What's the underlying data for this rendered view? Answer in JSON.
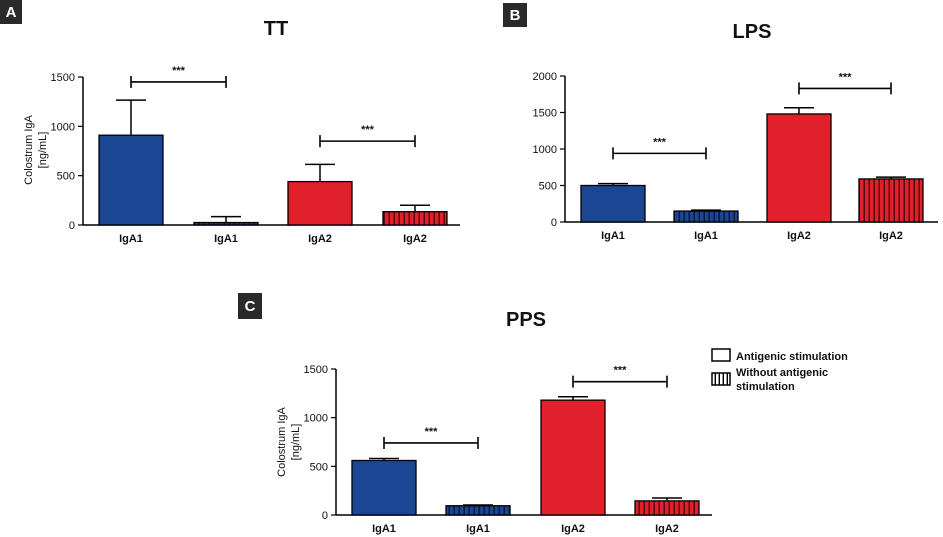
{
  "colors": {
    "iga1": "#1a4694",
    "iga2": "#e0202a",
    "panel_label_bg": "#2a2a2a",
    "axis": "#000000"
  },
  "legend": {
    "items": [
      {
        "label": "Antigenic stimulation",
        "pattern": "solid"
      },
      {
        "label": "Without antigenic stimulation",
        "line1": "Without antigenic",
        "line2": "stimulation",
        "pattern": "striped"
      }
    ]
  },
  "chart_data": [
    {
      "panel": "A",
      "type": "bar",
      "title": "TT",
      "ylabel_line1": "Colostrum IgA",
      "ylabel_line2": "[ng/mL]",
      "ylim": [
        0,
        1500
      ],
      "yticks": [
        0,
        500,
        1000,
        1500
      ],
      "ytick_labels": [
        "0",
        "500",
        "1000",
        "1500"
      ],
      "categories": [
        "IgA1",
        "IgA1",
        "IgA2",
        "IgA2"
      ],
      "values": [
        910,
        25,
        440,
        135
      ],
      "errors": [
        355,
        60,
        175,
        65
      ],
      "fill": [
        "iga1",
        "iga1",
        "iga2",
        "iga2"
      ],
      "pattern": [
        "solid",
        "striped",
        "solid",
        "striped"
      ],
      "significance": [
        {
          "from": 0,
          "to": 1,
          "label": "***",
          "y": 1450
        },
        {
          "from": 2,
          "to": 3,
          "label": "***",
          "y": 850
        }
      ]
    },
    {
      "panel": "B",
      "type": "bar",
      "title": "LPS",
      "ylabel_line1": "",
      "ylabel_line2": "",
      "ylim": [
        0,
        2000
      ],
      "yticks": [
        0,
        500,
        1000,
        1500,
        2000
      ],
      "ytick_labels": [
        "0",
        "500",
        "1000",
        "1500",
        "2000"
      ],
      "categories": [
        "IgA1",
        "IgA1",
        "IgA2",
        "IgA2"
      ],
      "values": [
        500,
        150,
        1480,
        590
      ],
      "errors": [
        25,
        12,
        85,
        25
      ],
      "fill": [
        "iga1",
        "iga1",
        "iga2",
        "iga2"
      ],
      "pattern": [
        "solid",
        "striped",
        "solid",
        "striped"
      ],
      "significance": [
        {
          "from": 0,
          "to": 1,
          "label": "***",
          "y": 940
        },
        {
          "from": 2,
          "to": 3,
          "label": "***",
          "y": 1830
        }
      ]
    },
    {
      "panel": "C",
      "type": "bar",
      "title": "PPS",
      "ylabel_line1": "Colostrum IgA",
      "ylabel_line2": "[ng/mL]",
      "ylim": [
        0,
        1500
      ],
      "yticks": [
        0,
        500,
        1000,
        1500
      ],
      "ytick_labels": [
        "0",
        "500",
        "1000",
        "1500"
      ],
      "categories": [
        "IgA1",
        "IgA1",
        "IgA2",
        "IgA2"
      ],
      "values": [
        560,
        95,
        1180,
        145
      ],
      "errors": [
        20,
        8,
        35,
        30
      ],
      "fill": [
        "iga1",
        "iga1",
        "iga2",
        "iga2"
      ],
      "pattern": [
        "solid",
        "striped",
        "solid",
        "striped"
      ],
      "significance": [
        {
          "from": 0,
          "to": 1,
          "label": "***",
          "y": 740
        },
        {
          "from": 2,
          "to": 3,
          "label": "***",
          "y": 1370
        }
      ]
    }
  ]
}
